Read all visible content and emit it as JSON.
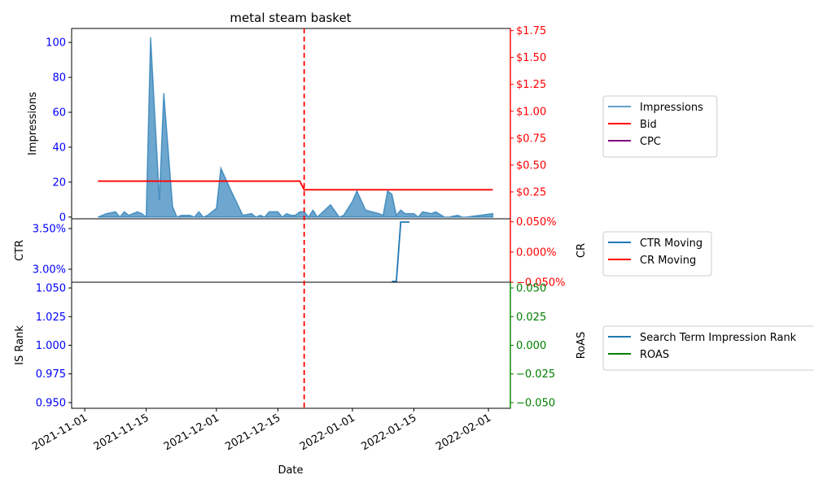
{
  "chart_data": {
    "type": "line",
    "title": "metal steam basket",
    "xlabel": "Date",
    "x_ticks": [
      "2021-11-01",
      "2021-11-15",
      "2021-12-01",
      "2021-12-15",
      "2022-01-01",
      "2022-01-15",
      "2022-02-01"
    ],
    "marker_date": "2021-12-21",
    "marker_color": "#ff0000",
    "panels": [
      {
        "left_axis": {
          "label": "Impressions",
          "ticks": [
            "0",
            "20",
            "40",
            "60",
            "80",
            "100"
          ],
          "range": [
            -1,
            108
          ],
          "color": "#0000ff"
        },
        "right_axis": {
          "label": "",
          "ticks": [
            "$0.25",
            "$0.50",
            "$0.75",
            "$1.00",
            "$1.25",
            "$1.50",
            "$1.75"
          ],
          "range": [
            0.0,
            1.77
          ],
          "color": "#ff0000"
        },
        "series": [
          {
            "name": "Impressions",
            "axis": "left",
            "kind": "area",
            "color": "#1f77b4",
            "points": [
              [
                "2021-11-04",
                0
              ],
              [
                "2021-11-06",
                2
              ],
              [
                "2021-11-08",
                3
              ],
              [
                "2021-11-09",
                0
              ],
              [
                "2021-11-10",
                3
              ],
              [
                "2021-11-11",
                1
              ],
              [
                "2021-11-13",
                3
              ],
              [
                "2021-11-14",
                2
              ],
              [
                "2021-11-15",
                0
              ],
              [
                "2021-11-16",
                103
              ],
              [
                "2021-11-18",
                10
              ],
              [
                "2021-11-19",
                71
              ],
              [
                "2021-11-21",
                6
              ],
              [
                "2021-11-22",
                0
              ],
              [
                "2021-11-23",
                1
              ],
              [
                "2021-11-25",
                1
              ],
              [
                "2021-11-26",
                0
              ],
              [
                "2021-11-27",
                3
              ],
              [
                "2021-11-28",
                0
              ],
              [
                "2021-11-29",
                1
              ],
              [
                "2021-12-01",
                5
              ],
              [
                "2021-12-02",
                28
              ],
              [
                "2021-12-04",
                17
              ],
              [
                "2021-12-07",
                1
              ],
              [
                "2021-12-09",
                2
              ],
              [
                "2021-12-10",
                0
              ],
              [
                "2021-12-11",
                1
              ],
              [
                "2021-12-12",
                0
              ],
              [
                "2021-12-13",
                3
              ],
              [
                "2021-12-15",
                3
              ],
              [
                "2021-12-16",
                0
              ],
              [
                "2021-12-17",
                2
              ],
              [
                "2021-12-18",
                1
              ],
              [
                "2021-12-19",
                1
              ],
              [
                "2021-12-20",
                3
              ],
              [
                "2021-12-21",
                3
              ],
              [
                "2021-12-22",
                0
              ],
              [
                "2021-12-23",
                4
              ],
              [
                "2021-12-24",
                0
              ],
              [
                "2021-12-27",
                7
              ],
              [
                "2021-12-29",
                0
              ],
              [
                "2021-12-30",
                1
              ],
              [
                "2022-01-01",
                9
              ],
              [
                "2022-01-02",
                15
              ],
              [
                "2022-01-04",
                4
              ],
              [
                "2022-01-07",
                2
              ],
              [
                "2022-01-08",
                1
              ],
              [
                "2022-01-09",
                15
              ],
              [
                "2022-01-10",
                13
              ],
              [
                "2022-01-11",
                1
              ],
              [
                "2022-01-12",
                4
              ],
              [
                "2022-01-13",
                2
              ],
              [
                "2022-01-15",
                2
              ],
              [
                "2022-01-16",
                0
              ],
              [
                "2022-01-17",
                3
              ],
              [
                "2022-01-19",
                2
              ],
              [
                "2022-01-20",
                3
              ],
              [
                "2022-01-22",
                0
              ],
              [
                "2022-01-23",
                0
              ],
              [
                "2022-01-25",
                1
              ],
              [
                "2022-01-26",
                0
              ],
              [
                "2022-01-27",
                0
              ],
              [
                "2022-02-02",
                2
              ]
            ]
          },
          {
            "name": "Bid",
            "axis": "right",
            "kind": "line",
            "color": "#ff0000",
            "points": [
              [
                "2021-11-04",
                0.35
              ],
              [
                "2021-12-20",
                0.35
              ],
              [
                "2021-12-21",
                0.27
              ],
              [
                "2022-02-02",
                0.27
              ]
            ]
          },
          {
            "name": "CPC",
            "axis": "right",
            "kind": "line",
            "color": "#800080",
            "points": []
          }
        ]
      },
      {
        "left_axis": {
          "label": "CTR",
          "ticks": [
            "3.00%",
            "3.50%"
          ],
          "range": [
            2.84,
            3.62
          ],
          "color": "#0000ff"
        },
        "right_axis": {
          "label": "CR",
          "ticks": [
            "−0.050%",
            "0.000%",
            "0.050%"
          ],
          "range": [
            -0.05,
            0.055
          ],
          "color": "#ff0000"
        },
        "series": [
          {
            "name": "CTR Moving",
            "axis": "left",
            "kind": "line",
            "color": "#1f77b4",
            "points": [
              [
                "2022-01-10",
                2.85
              ],
              [
                "2022-01-11",
                2.85
              ],
              [
                "2022-01-12",
                3.58
              ],
              [
                "2022-01-14",
                3.58
              ]
            ]
          },
          {
            "name": "CR Moving",
            "axis": "right",
            "kind": "line",
            "color": "#ff0000",
            "points": []
          }
        ]
      },
      {
        "left_axis": {
          "label": "IS Rank",
          "ticks": [
            "0.950",
            "0.975",
            "1.000",
            "1.025",
            "1.050"
          ],
          "range": [
            0.945,
            1.055
          ],
          "color": "#0000ff"
        },
        "right_axis": {
          "label": "RoAS",
          "ticks": [
            "−0.050",
            "−0.025",
            "0.000",
            "0.025",
            "0.050"
          ],
          "range": [
            -0.055,
            0.055
          ],
          "color": "#008000"
        },
        "series": [
          {
            "name": "Search Term Impression Rank",
            "axis": "left",
            "kind": "line",
            "color": "#1f77b4",
            "points": []
          },
          {
            "name": "ROAS",
            "axis": "right",
            "kind": "line",
            "color": "#008000",
            "points": []
          }
        ]
      }
    ]
  }
}
